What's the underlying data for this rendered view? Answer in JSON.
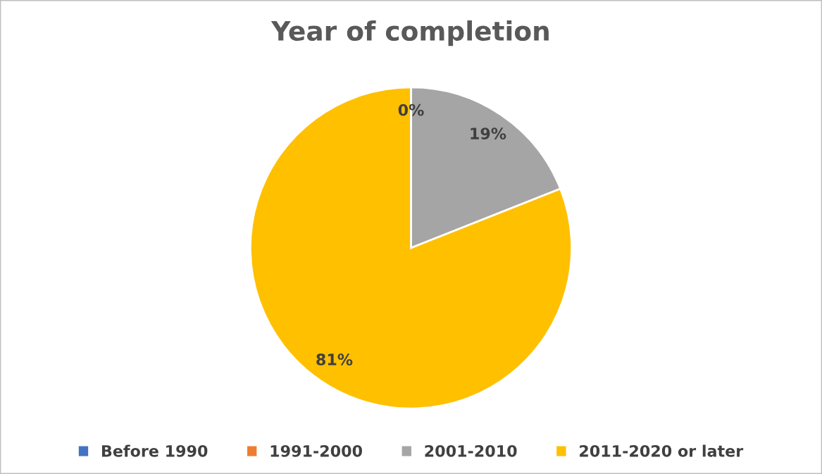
{
  "chart_data": {
    "type": "pie",
    "title": "Year of completion",
    "categories": [
      "Before 1990",
      "1991-2000",
      "2001-2010",
      "2011-2020 or later"
    ],
    "values": [
      0,
      0,
      19,
      81
    ],
    "colors": [
      "#4472c4",
      "#ed7d31",
      "#a5a5a5",
      "#ffc000"
    ],
    "value_labels": [
      "0%",
      null,
      "19%",
      "81%"
    ],
    "legend": "bottom"
  }
}
